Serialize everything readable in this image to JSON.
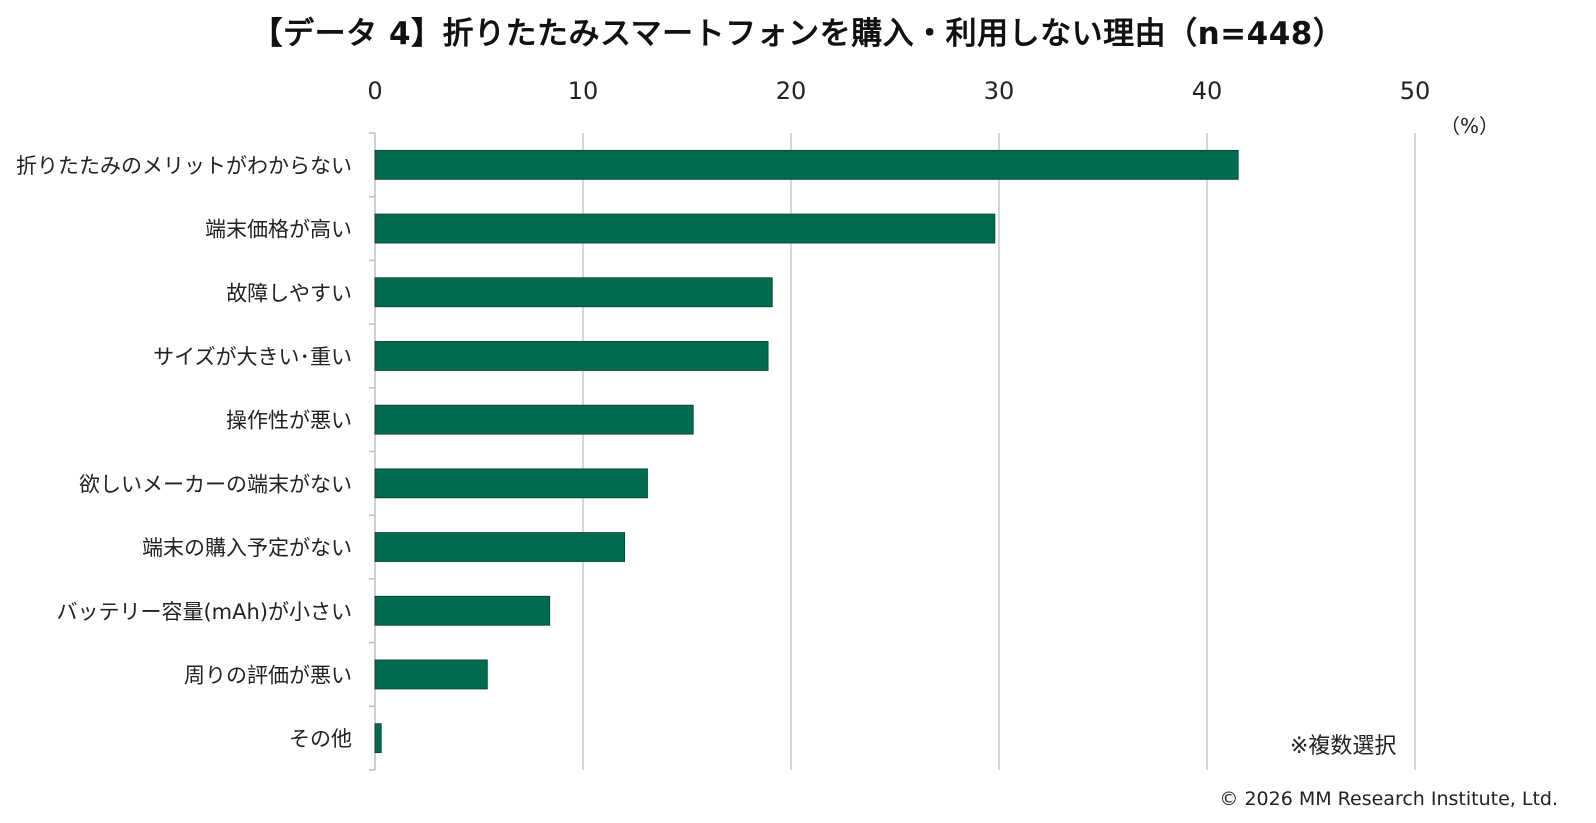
{
  "title": "【データ 4】折りたたみスマートフォンを購入・利用しない理由（n=448）",
  "unit_label": "（%）",
  "note": "※複数選択",
  "copyright": "© 2026 MM Research Institute, Ltd.",
  "colors": {
    "bar": "#006B4E",
    "grid": "#C8C8C8",
    "axis": "#BFBFBF",
    "text": "#222222"
  },
  "chart_data": {
    "type": "bar",
    "orientation": "horizontal",
    "title": "【データ 4】折りたたみスマートフォンを購入・利用しない理由（n=448）",
    "xlabel": "（%）",
    "ylabel": "",
    "xlim": [
      0,
      50
    ],
    "xticks": [
      0,
      10,
      20,
      30,
      40,
      50
    ],
    "tick_position": "top",
    "grid": true,
    "legend": "none",
    "categories": [
      "折りたたみのメリットがわからない",
      "端末価格が高い",
      "故障しやすい",
      "サイズが大きい･重い",
      "操作性が悪い",
      "欲しいメーカーの端末がない",
      "端末の購入予定がない",
      "バッテリー容量(mAh)が小さい",
      "周りの評価が悪い",
      "その他"
    ],
    "values": [
      41.5,
      29.8,
      19.1,
      18.9,
      15.3,
      13.1,
      12.0,
      8.4,
      5.4,
      0.3
    ]
  }
}
